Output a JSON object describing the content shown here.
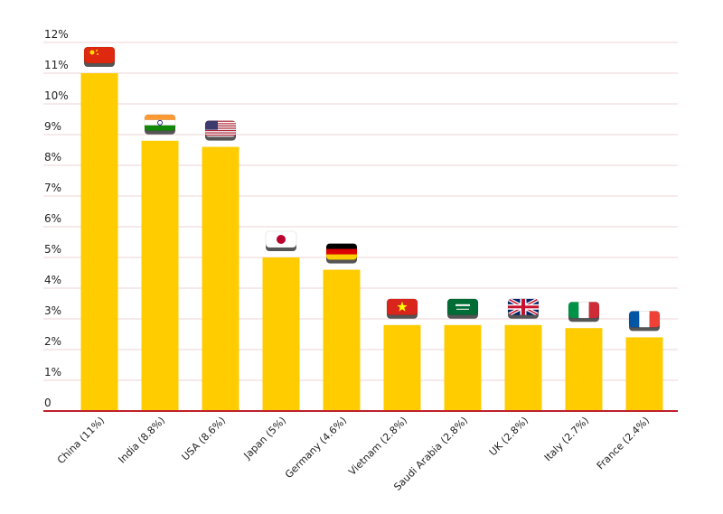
{
  "chart_data": {
    "type": "bar",
    "categories": [
      "China (11%)",
      "India (8.8%)",
      "USA (8.6%)",
      "Japan (5%)",
      "Germany (4.6%)",
      "Vietnam (2.8%)",
      "Saudi Arabia (2.8%)",
      "UK (2.8%)",
      "Italy (2.7%)",
      "France (2.4%)"
    ],
    "values": [
      11,
      8.8,
      8.6,
      5,
      4.6,
      2.8,
      2.8,
      2.8,
      2.7,
      2.4
    ],
    "yticks": [
      "0",
      "1%",
      "2%",
      "3%",
      "4%",
      "5%",
      "6%",
      "7%",
      "8%",
      "9%",
      "10%",
      "11%",
      "12%"
    ],
    "ylim": [
      0,
      12
    ],
    "grid": true,
    "colors": {
      "bar": "#ffcc00",
      "grid": "#ecd3d6",
      "axis": "#c0202a"
    },
    "flags": [
      "china-flag-icon",
      "india-flag-icon",
      "usa-flag-icon",
      "japan-flag-icon",
      "germany-flag-icon",
      "vietnam-flag-icon",
      "saudi-arabia-flag-icon",
      "uk-flag-icon",
      "italy-flag-icon",
      "france-flag-icon"
    ]
  }
}
